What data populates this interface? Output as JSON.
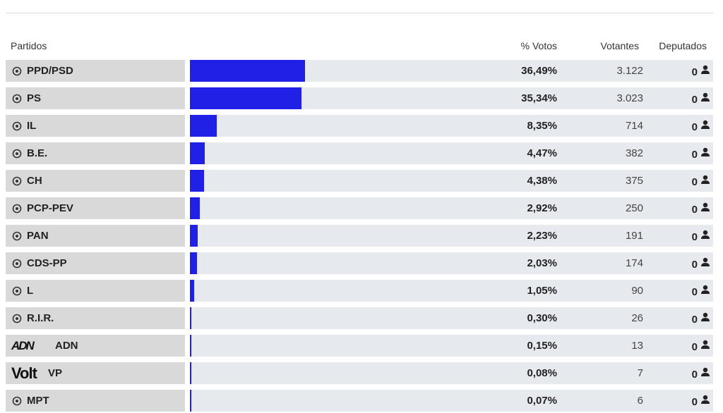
{
  "header": {
    "party": "Partidos",
    "votes_pct": "% Votos",
    "voters": "Votantes",
    "seats": "Deputados"
  },
  "rows": [
    {
      "party": "PPD/PSD",
      "votes_pct": 36.49,
      "votes_pct_label": "36,49%",
      "voters": "3.122",
      "seats": "0"
    },
    {
      "party": "PS",
      "votes_pct": 35.34,
      "votes_pct_label": "35,34%",
      "voters": "3.023",
      "seats": "0"
    },
    {
      "party": "IL",
      "votes_pct": 8.35,
      "votes_pct_label": "8,35%",
      "voters": "714",
      "seats": "0"
    },
    {
      "party": "B.E.",
      "votes_pct": 4.47,
      "votes_pct_label": "4,47%",
      "voters": "382",
      "seats": "0"
    },
    {
      "party": "CH",
      "votes_pct": 4.38,
      "votes_pct_label": "4,38%",
      "voters": "375",
      "seats": "0"
    },
    {
      "party": "PCP-PEV",
      "votes_pct": 2.92,
      "votes_pct_label": "2,92%",
      "voters": "250",
      "seats": "0"
    },
    {
      "party": "PAN",
      "votes_pct": 2.23,
      "votes_pct_label": "2,23%",
      "voters": "191",
      "seats": "0"
    },
    {
      "party": "CDS-PP",
      "votes_pct": 2.03,
      "votes_pct_label": "2,03%",
      "voters": "174",
      "seats": "0"
    },
    {
      "party": "L",
      "votes_pct": 1.05,
      "votes_pct_label": "1,05%",
      "voters": "90",
      "seats": "0"
    },
    {
      "party": "R.I.R.",
      "votes_pct": 0.3,
      "votes_pct_label": "0,30%",
      "voters": "26",
      "seats": "0"
    },
    {
      "party": "ADN",
      "logo_text": "ADN",
      "votes_pct": 0.15,
      "votes_pct_label": "0,15%",
      "voters": "13",
      "seats": "0"
    },
    {
      "party": "VP",
      "logo_text": "Volt",
      "votes_pct": 0.08,
      "votes_pct_label": "0,08%",
      "voters": "7",
      "seats": "0"
    },
    {
      "party": "MPT",
      "votes_pct": 0.07,
      "votes_pct_label": "0,07%",
      "voters": "6",
      "seats": "0"
    }
  ]
}
